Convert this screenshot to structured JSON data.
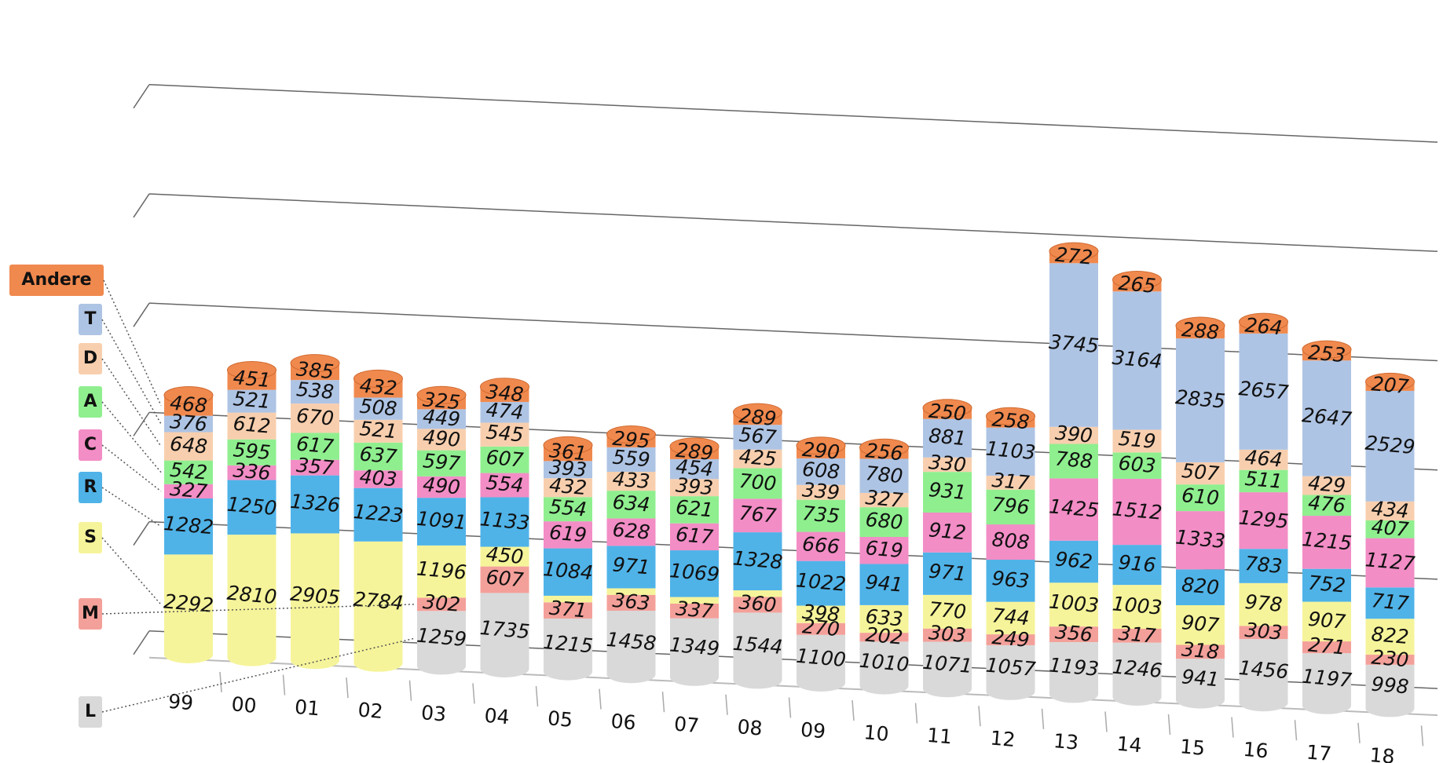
{
  "chart_data": {
    "type": "stacked-cylinder",
    "categories": [
      "99",
      "00",
      "01",
      "02",
      "03",
      "04",
      "05",
      "06",
      "07",
      "08",
      "09",
      "10",
      "11",
      "12",
      "13",
      "14",
      "15",
      "16",
      "17",
      "18"
    ],
    "series": [
      {
        "name": "L",
        "color": "#d9d9d9",
        "values": [
          null,
          null,
          null,
          null,
          1259,
          1735,
          1215,
          1458,
          1349,
          1544,
          1100,
          1010,
          1071,
          1057,
          1193,
          1246,
          941,
          1456,
          1197,
          998
        ]
      },
      {
        "name": "M",
        "color": "#f4a09a",
        "values": [
          null,
          null,
          null,
          null,
          302,
          607,
          371,
          363,
          337,
          360,
          270,
          202,
          303,
          249,
          356,
          317,
          318,
          303,
          271,
          230
        ]
      },
      {
        "name": "S",
        "color": "#f6f49a",
        "values": [
          2292,
          2810,
          2905,
          2784,
          1196,
          450,
          150,
          150,
          150,
          150,
          398,
          633,
          770,
          744,
          1003,
          1003,
          907,
          978,
          907,
          822
        ],
        "value_labels": [
          "2292",
          "2810",
          "2905",
          "2784",
          "1196",
          "450",
          null,
          null,
          null,
          null,
          "398",
          "633",
          "770",
          "744",
          "1003",
          "1003",
          "907",
          "978",
          "907",
          "822"
        ]
      },
      {
        "name": "R",
        "color": "#4fb3e8",
        "values": [
          1282,
          1250,
          1326,
          1223,
          1091,
          1133,
          1084,
          971,
          1069,
          1328,
          1022,
          941,
          971,
          963,
          962,
          916,
          820,
          783,
          752,
          717
        ]
      },
      {
        "name": "C",
        "color": "#f28dc6",
        "values": [
          327,
          336,
          357,
          403,
          490,
          554,
          619,
          628,
          617,
          767,
          666,
          619,
          912,
          808,
          1425,
          1512,
          1333,
          1295,
          1215,
          1127
        ]
      },
      {
        "name": "A",
        "color": "#8fef8f",
        "values": [
          542,
          595,
          617,
          637,
          597,
          607,
          554,
          634,
          621,
          700,
          735,
          680,
          931,
          796,
          788,
          603,
          610,
          511,
          476,
          407
        ]
      },
      {
        "name": "D",
        "color": "#f8cfae",
        "values": [
          648,
          612,
          670,
          521,
          490,
          545,
          432,
          433,
          393,
          425,
          339,
          327,
          330,
          317,
          390,
          519,
          507,
          464,
          429,
          434
        ]
      },
      {
        "name": "T",
        "color": "#aec4e4",
        "values": [
          376,
          521,
          538,
          508,
          449,
          474,
          393,
          559,
          454,
          567,
          608,
          780,
          881,
          1103,
          3745,
          3164,
          2835,
          2657,
          2647,
          2529
        ]
      },
      {
        "name": "Andere",
        "color": "#f0894e",
        "values": [
          468,
          451,
          385,
          432,
          325,
          348,
          361,
          295,
          289,
          289,
          290,
          256,
          250,
          258,
          272,
          265,
          288,
          264,
          253,
          207
        ]
      }
    ],
    "ylim": [
      0,
      12500
    ],
    "yticks": [
      0,
      2500,
      5000,
      7500,
      10000,
      12500
    ],
    "grid": true
  }
}
